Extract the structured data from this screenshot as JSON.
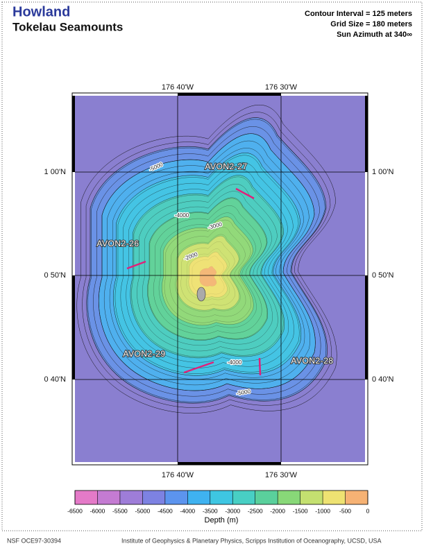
{
  "header": {
    "title": "Howland",
    "subtitle": "Tokelau Seamounts",
    "notes": [
      "Contour Interval = 125 meters",
      "Grid Size = 180 meters",
      "Sun Azimuth at 340∞"
    ]
  },
  "map": {
    "lon_labels": [
      "176 40'W",
      "176 30'W"
    ],
    "lat_labels": [
      "1 00'N",
      "0 50'N",
      "0 40'N"
    ],
    "contour_labels": [
      "-5000",
      "-4000",
      "-3000",
      "-2000",
      "-4000",
      "-5000"
    ],
    "stations": [
      "AVON2-27",
      "AVON2-26",
      "AVON2-29",
      "AVON2-28"
    ]
  },
  "colorbar": {
    "ticks": [
      -6500,
      -6000,
      -5500,
      -5000,
      -4500,
      -4000,
      -3500,
      -3000,
      -2500,
      -2000,
      -1500,
      -1000,
      -500,
      0
    ],
    "colors": [
      "#e47ac8",
      "#c47bd2",
      "#9e7dd8",
      "#7d82e2",
      "#5c94ee",
      "#3fb2f0",
      "#3ec6e2",
      "#48cfc4",
      "#5ad09c",
      "#88d878",
      "#c4e070",
      "#eee272",
      "#f6b274"
    ],
    "label": "Depth (m)"
  },
  "footer": {
    "left": "NSF OCE97-30394",
    "right": "Institute of Geophysics & Planetary Physics, Scripps Institution of Oceanography, UCSD, USA"
  }
}
